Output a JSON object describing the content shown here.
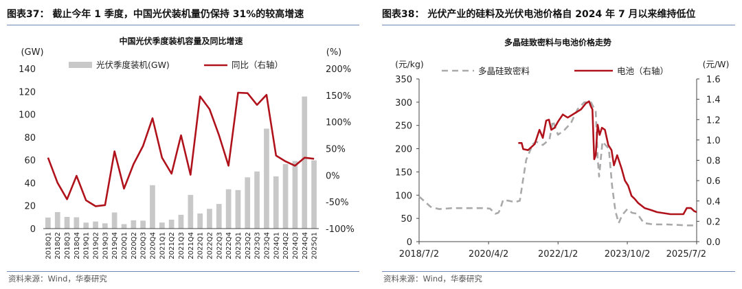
{
  "panels": [
    {
      "heading": "图表37：  截止今年 1 季度，中国光伏装机量仍保持 31%的较高增速",
      "source": "资料来源：Wind，华泰研究"
    },
    {
      "heading": "图表38：  光伏产业的硅料及光伏电池价格自 2024 年 7 月以来维持低位",
      "source": "资料来源：Wind，华泰研究"
    }
  ],
  "chart_data": [
    {
      "type": "bar",
      "title": "中国光伏季度装机容量及同比增速",
      "left_unit": "(GW)",
      "right_unit": "(%)",
      "ylim": [
        0,
        140
      ],
      "y2lim": [
        -100,
        200
      ],
      "y_ticks": [
        0,
        20,
        40,
        60,
        80,
        100,
        120,
        140
      ],
      "y2_ticks": [
        "-100%",
        "-50%",
        "0%",
        "50%",
        "100%",
        "150%",
        "200%"
      ],
      "categories": [
        "2018Q1",
        "2018Q2",
        "2018Q3",
        "2018Q4",
        "2019Q1",
        "2019Q2",
        "2019Q3",
        "2019Q4",
        "2020Q1",
        "2020Q2",
        "2020Q3",
        "2020Q4",
        "2021Q1",
        "2021Q2",
        "2021Q3",
        "2021Q4",
        "2022Q1",
        "2022Q2",
        "2022Q3",
        "2022Q4",
        "2023Q1",
        "2023Q2",
        "2023Q3",
        "2023Q4",
        "2024Q1",
        "2024Q2",
        "2024Q3",
        "2024Q4",
        "2025Q1"
      ],
      "series": [
        {
          "name": "光伏季度装机(GW)",
          "kind": "bar",
          "color": "#c8c8c8",
          "values": [
            9.7,
            14.5,
            10.2,
            9.9,
            5.2,
            6.2,
            4.6,
            14.1,
            3.9,
            7.3,
            7.0,
            38.0,
            5.3,
            7.8,
            12.1,
            29.5,
            13.2,
            17.3,
            21.6,
            34.4,
            33.7,
            44.9,
            50.0,
            87.5,
            45.7,
            56.4,
            59.1,
            115.6,
            59.7
          ]
        },
        {
          "name": "同比（右轴）",
          "kind": "line",
          "axis": "right",
          "color": "#b0121b",
          "values": [
            33,
            -14,
            -45,
            -1,
            -47,
            -58,
            -56,
            45,
            -25,
            21,
            55,
            107,
            33,
            3,
            75,
            1,
            148,
            124,
            75,
            18,
            155,
            154,
            132,
            151,
            37,
            26,
            18,
            33,
            31
          ]
        }
      ]
    },
    {
      "type": "line",
      "title": "多晶硅致密料与电池价格走势",
      "left_unit": "(元/kg)",
      "right_unit": "(元/W)",
      "ylim": [
        0,
        350
      ],
      "y2lim": [
        0,
        1.6
      ],
      "y_ticks": [
        0,
        50,
        100,
        150,
        200,
        250,
        300,
        350
      ],
      "y2_ticks": [
        "0.0",
        "0.2",
        "0.4",
        "0.6",
        "0.8",
        "1.0",
        "1.2",
        "1.4",
        "1.6"
      ],
      "x_ticks": [
        "2018/7/2",
        "2020/4/2",
        "2022/1/2",
        "2023/10/2",
        "2025/7/2"
      ],
      "series": [
        {
          "name": "多晶硅致密料",
          "axis": "left",
          "color": "#a9a9a9",
          "dash": true,
          "x": [
            "2018/7/2",
            "2018/8/15",
            "2018/10/15",
            "2019/1/2",
            "2019/5/1",
            "2019/9/1",
            "2020/1/1",
            "2020/3/1",
            "2020/4/15",
            "2020/6/2",
            "2020/7/1",
            "2020/7/15",
            "2020/8/15",
            "2020/10/1",
            "2020/12/1",
            "2021/1/15",
            "2021/2/15",
            "2021/3/15",
            "2021/5/15",
            "2021/6/15",
            "2021/8/15",
            "2021/10/15",
            "2021/11/15",
            "2022/1/2",
            "2022/3/1",
            "2022/5/1",
            "2022/7/1",
            "2022/9/1",
            "2022/11/1",
            "2022/12/15",
            "2023/1/2",
            "2023/1/15",
            "2023/2/15",
            "2023/4/15",
            "2023/5/15",
            "2023/6/15",
            "2023/7/15",
            "2023/8/15",
            "2023/10/2",
            "2023/11/15",
            "2024/1/2",
            "2024/3/2",
            "2024/5/2",
            "2024/7/2",
            "2024/10/2",
            "2025/1/2",
            "2025/4/2",
            "2025/7/2"
          ],
          "y": [
            97,
            88,
            75,
            70,
            72,
            72,
            72,
            72,
            71,
            60,
            62,
            68,
            90,
            88,
            85,
            88,
            135,
            176,
            210,
            215,
            208,
            220,
            260,
            230,
            240,
            255,
            285,
            300,
            300,
            280,
            180,
            140,
            215,
            200,
            120,
            65,
            40,
            57,
            70,
            62,
            60,
            40,
            38,
            37,
            37,
            36,
            35,
            35
          ]
        },
        {
          "name": "电池（右轴）",
          "axis": "right",
          "color": "#b0121b",
          "dash": false,
          "x": [
            "2021/1/1",
            "2021/2/1",
            "2021/2/15",
            "2021/4/1",
            "2021/6/1",
            "2021/7/15",
            "2021/8/15",
            "2021/9/15",
            "2021/10/10",
            "2021/11/1",
            "2021/12/1",
            "2022/1/2",
            "2022/2/15",
            "2022/4/1",
            "2022/6/1",
            "2022/8/1",
            "2022/9/15",
            "2022/10/15",
            "2022/11/1",
            "2022/11/15",
            "2022/12/1",
            "2022/12/15",
            "2023/1/2",
            "2023/1/20",
            "2023/2/10",
            "2023/3/10",
            "2023/4/10",
            "2023/5/10",
            "2023/6/1",
            "2023/7/1",
            "2023/8/10",
            "2023/9/10",
            "2023/10/10",
            "2023/11/10",
            "2023/12/10",
            "2024/1/10",
            "2024/3/10",
            "2024/5/10",
            "2024/7/2",
            "2024/9/2",
            "2024/11/2",
            "2025/1/2",
            "2025/3/2",
            "2025/4/2",
            "2025/5/10",
            "2025/6/10",
            "2025/7/2"
          ],
          "y": [
            0.97,
            0.97,
            0.91,
            0.9,
            0.96,
            1.1,
            1.02,
            1.19,
            1.2,
            1.1,
            1.12,
            1.18,
            1.25,
            1.22,
            1.26,
            1.3,
            1.36,
            1.38,
            1.33,
            1.3,
            0.81,
            0.85,
            1.15,
            1.05,
            1.12,
            1.1,
            0.95,
            0.9,
            0.75,
            0.85,
            0.72,
            0.6,
            0.55,
            0.45,
            0.42,
            0.38,
            0.33,
            0.31,
            0.29,
            0.28,
            0.27,
            0.27,
            0.27,
            0.33,
            0.33,
            0.3,
            0.29
          ]
        }
      ]
    }
  ]
}
